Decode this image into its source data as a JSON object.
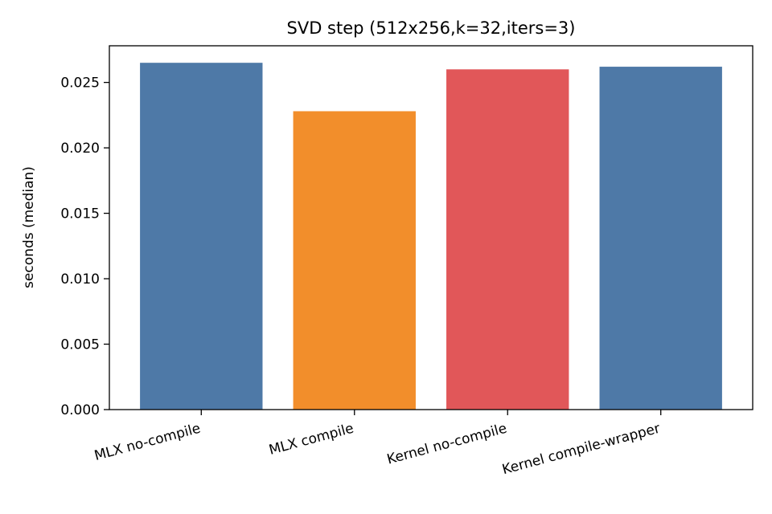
{
  "chart_data": {
    "type": "bar",
    "title": "SVD step (512x256,k=32,iters=3)",
    "xlabel": "",
    "ylabel": "seconds (median)",
    "categories": [
      "MLX no-compile",
      "MLX compile",
      "Kernel no-compile",
      "Kernel compile-wrapper"
    ],
    "values": [
      0.0265,
      0.0228,
      0.026,
      0.0262
    ],
    "bar_colors": [
      "#4e79a7",
      "#f28e2b",
      "#e15759",
      "#4e79a7"
    ],
    "ylim": [
      0,
      0.0278
    ],
    "yticks": [
      0.0,
      0.005,
      0.01,
      0.015,
      0.02,
      0.025
    ],
    "ytick_labels": [
      "0.000",
      "0.005",
      "0.010",
      "0.015",
      "0.020",
      "0.025"
    ],
    "grid": false,
    "legend": "none"
  }
}
